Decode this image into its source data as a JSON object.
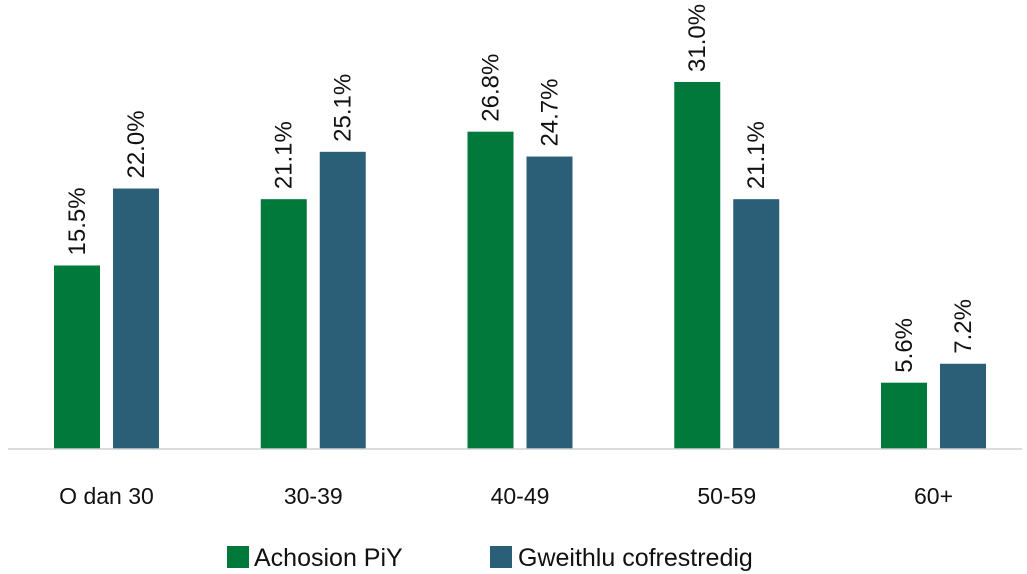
{
  "chart_data": {
    "type": "bar",
    "categories": [
      "O dan 30",
      "30-39",
      "40-49",
      "50-59",
      "60+"
    ],
    "series": [
      {
        "name": "Achosion PiY",
        "color": "#00793A",
        "values": [
          15.5,
          21.1,
          26.8,
          31.0,
          5.6
        ],
        "labels": [
          "15.5%",
          "21.1%",
          "26.8%",
          "31.0%",
          "5.6%"
        ]
      },
      {
        "name": "Gweithlu cofrestredig",
        "color": "#2B5E77",
        "values": [
          22.0,
          25.1,
          24.7,
          21.1,
          7.2
        ],
        "labels": [
          "22.0%",
          "25.1%",
          "24.7%",
          "21.1%",
          "7.2%"
        ]
      }
    ],
    "title": "",
    "xlabel": "",
    "ylabel": "",
    "ylim": [
      0,
      31
    ],
    "grid": false,
    "legend_position": "bottom",
    "baseline_color": "#D0D0D0"
  }
}
